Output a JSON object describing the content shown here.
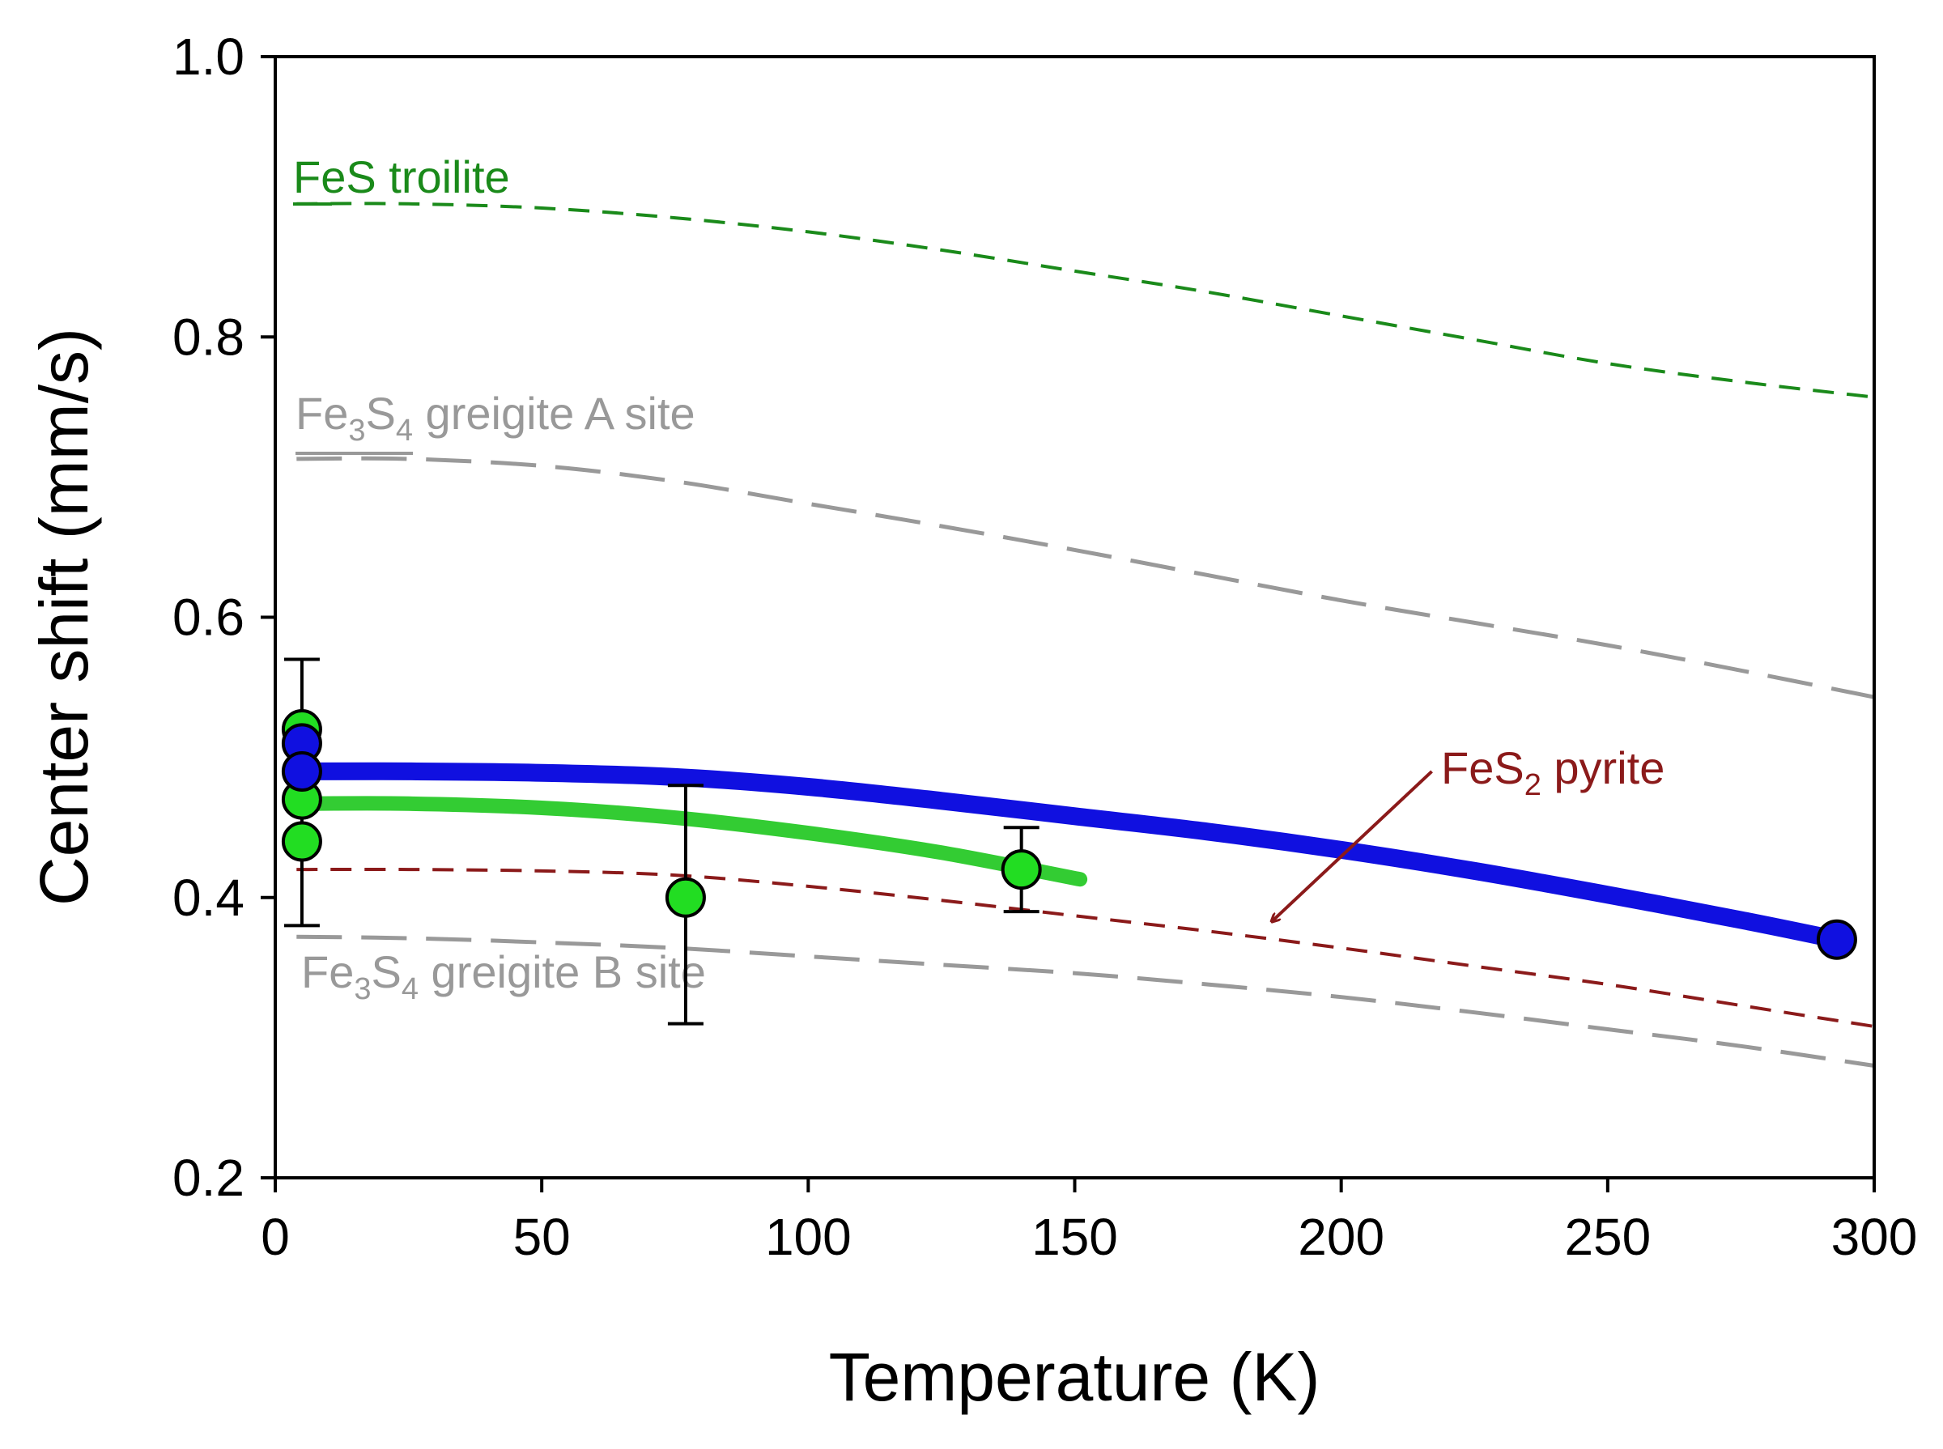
{
  "chart_data": {
    "type": "line",
    "title": "",
    "xlabel": "Temperature (K)",
    "ylabel": "Center shift (mm/s)",
    "xlim": [
      0,
      300
    ],
    "ylim": [
      0.2,
      1.0
    ],
    "xticks": [
      0,
      50,
      100,
      150,
      200,
      250,
      300
    ],
    "yticks": [
      0.2,
      0.4,
      0.6,
      0.8,
      1.0
    ],
    "xtick_labels": [
      "0",
      "50",
      "100",
      "150",
      "200",
      "250",
      "300"
    ],
    "ytick_labels": [
      "0.2",
      "0.4",
      "0.6",
      "0.8",
      "1.0"
    ],
    "grid": false,
    "reference_curves": [
      {
        "id": "troilite",
        "label_prefix": "FeS troilite",
        "label_sub": "",
        "label_suffix": "",
        "color": "#1a8a1a",
        "dash": "short",
        "x": [
          4,
          25,
          50,
          75,
          100,
          125,
          150,
          175,
          200,
          225,
          250,
          275,
          300
        ],
        "y": [
          0.895,
          0.895,
          0.892,
          0.885,
          0.875,
          0.862,
          0.847,
          0.832,
          0.815,
          0.798,
          0.781,
          0.768,
          0.757
        ]
      },
      {
        "id": "greigite-a",
        "label_prefix": "Fe",
        "label_sub": "3",
        "label_mid": "S",
        "label_sub2": "4",
        "label_suffix": " greigite A site",
        "color": "#999999",
        "dash": "long",
        "x": [
          4,
          25,
          50,
          75,
          100,
          125,
          150,
          175,
          200,
          225,
          250,
          275,
          300
        ],
        "y": [
          0.713,
          0.713,
          0.708,
          0.697,
          0.681,
          0.665,
          0.648,
          0.63,
          0.612,
          0.596,
          0.58,
          0.562,
          0.543
        ]
      },
      {
        "id": "pyrite",
        "label_prefix": "FeS",
        "label_sub": "2",
        "label_suffix": " pyrite",
        "color": "#8b1a1a",
        "dash": "short",
        "x": [
          4,
          25,
          50,
          75,
          100,
          125,
          150,
          175,
          200,
          225,
          250,
          275,
          300
        ],
        "y": [
          0.42,
          0.42,
          0.419,
          0.416,
          0.408,
          0.398,
          0.387,
          0.376,
          0.364,
          0.351,
          0.338,
          0.323,
          0.308
        ]
      },
      {
        "id": "greigite-b",
        "label_prefix": "Fe",
        "label_sub": "3",
        "label_mid": "S",
        "label_sub2": "4",
        "label_suffix": " greigite B site",
        "color": "#999999",
        "dash": "long",
        "x": [
          4,
          25,
          50,
          75,
          100,
          125,
          150,
          175,
          200,
          225,
          250,
          275,
          300
        ],
        "y": [
          0.372,
          0.371,
          0.368,
          0.364,
          0.358,
          0.352,
          0.346,
          0.338,
          0.329,
          0.318,
          0.306,
          0.294,
          0.28
        ]
      }
    ],
    "series": [
      {
        "name": "fit-blue",
        "color": "#1010e0",
        "x": [
          5,
          25,
          50,
          75,
          100,
          125,
          150,
          175,
          200,
          225,
          250,
          275,
          293
        ],
        "y": [
          0.49,
          0.49,
          0.489,
          0.486,
          0.479,
          0.469,
          0.458,
          0.447,
          0.434,
          0.419,
          0.402,
          0.384,
          0.37
        ]
      },
      {
        "name": "fit-green",
        "color": "#33cc33",
        "x": [
          5,
          25,
          50,
          75,
          100,
          125,
          151
        ],
        "y": [
          0.467,
          0.467,
          0.464,
          0.457,
          0.446,
          0.432,
          0.413
        ]
      }
    ],
    "points": [
      {
        "name": "green-point",
        "color": "#22dd22",
        "x": 5,
        "y": 0.52
      },
      {
        "name": "green-point",
        "color": "#22dd22",
        "x": 5,
        "y": 0.47
      },
      {
        "name": "green-point",
        "color": "#22dd22",
        "x": 5,
        "y": 0.44
      },
      {
        "name": "green-point",
        "color": "#22dd22",
        "x": 77,
        "y": 0.4
      },
      {
        "name": "green-point",
        "color": "#22dd22",
        "x": 140,
        "y": 0.42
      },
      {
        "name": "blue-point",
        "color": "#1010e0",
        "x": 5,
        "y": 0.51
      },
      {
        "name": "blue-point",
        "color": "#1010e0",
        "x": 5,
        "y": 0.49
      },
      {
        "name": "blue-point",
        "color": "#1010e0",
        "x": 293,
        "y": 0.37
      }
    ],
    "error_bars": [
      {
        "x": 5,
        "low": 0.38,
        "high": 0.57
      },
      {
        "x": 77,
        "low": 0.31,
        "high": 0.48
      },
      {
        "x": 140,
        "low": 0.39,
        "high": 0.45
      }
    ],
    "annotation_arrow": {
      "from": [
        217,
        0.49
      ],
      "to": [
        187,
        0.383
      ],
      "color": "#8b1a1a"
    }
  }
}
